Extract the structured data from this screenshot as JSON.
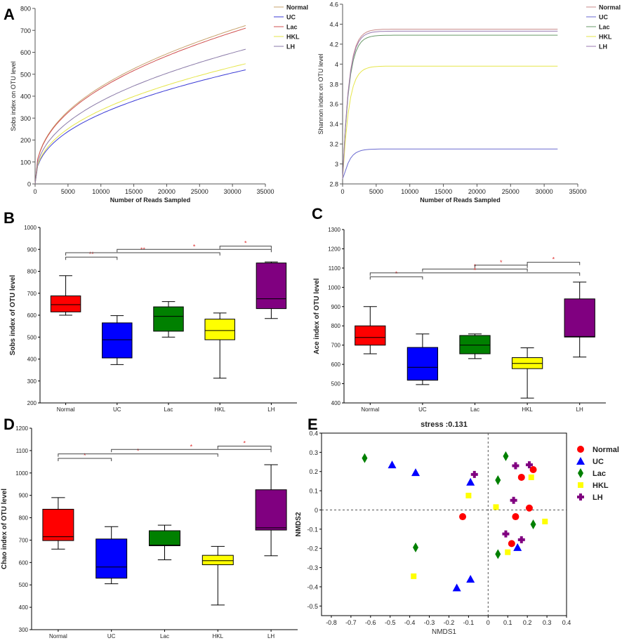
{
  "panels": {
    "A": {
      "letter": "A",
      "left": {
        "chart_type": "line",
        "title": "",
        "xlabel": "Number of Reads Sampled",
        "ylabel": "Sobs index on OTU level",
        "xlim": [
          0,
          35000
        ],
        "ylim": [
          0,
          800
        ],
        "xticks": [
          0,
          5000,
          10000,
          15000,
          20000,
          25000,
          30000,
          35000
        ],
        "yticks": [
          0,
          100,
          200,
          300,
          400,
          500,
          600,
          700,
          800
        ],
        "legend": [
          "Normal",
          "UC",
          "Lac",
          "HKL",
          "LH"
        ],
        "series": [
          {
            "name": "Normal",
            "color": "#c8a36e",
            "final": 722
          },
          {
            "name": "UC",
            "color": "#3b3bd6",
            "final": 520
          },
          {
            "name": "Lac",
            "color": "#d05050",
            "final": 710
          },
          {
            "name": "HKL",
            "color": "#e6e64a",
            "final": 548
          },
          {
            "name": "LH",
            "color": "#8a7aa8",
            "final": 614
          }
        ],
        "x_end": 32000
      },
      "right": {
        "chart_type": "line",
        "title": "",
        "xlabel": "Number of Reads Sampled",
        "ylabel": "Shannon index on OTU level",
        "xlim": [
          0,
          35000
        ],
        "ylim": [
          2.8,
          4.6
        ],
        "xticks": [
          0,
          5000,
          10000,
          15000,
          20000,
          25000,
          30000,
          35000
        ],
        "yticks": [
          2.8,
          3,
          3.2,
          3.4,
          3.6,
          3.8,
          4,
          4.2,
          4.4,
          4.6
        ],
        "legend": [
          "Normal",
          "UC",
          "Lac",
          "HKL",
          "LH"
        ],
        "series": [
          {
            "name": "Normal",
            "color": "#c88a8a",
            "final": 4.35
          },
          {
            "name": "UC",
            "color": "#6a6ad0",
            "final": 3.15
          },
          {
            "name": "Lac",
            "color": "#6a9a6a",
            "final": 4.29
          },
          {
            "name": "HKL",
            "color": "#e6e64a",
            "final": 3.98
          },
          {
            "name": "LH",
            "color": "#9a7ab0",
            "final": 4.33
          }
        ],
        "x_end": 32000
      }
    },
    "B": {
      "letter": "B",
      "chart_type": "box",
      "ylabel": "Sobs index of OTU level",
      "ylim": [
        200,
        1000
      ],
      "yticks": [
        200,
        300,
        400,
        500,
        600,
        700,
        800,
        900,
        1000
      ],
      "categories": [
        "Normal",
        "UC",
        "Lac",
        "HKL",
        "LH"
      ],
      "boxes": [
        {
          "name": "Normal",
          "color": "#ff0000",
          "min": 600,
          "q1": 615,
          "median": 648,
          "q3": 688,
          "max": 780
        },
        {
          "name": "UC",
          "color": "#0000ff",
          "min": 375,
          "q1": 405,
          "median": 488,
          "q3": 565,
          "max": 598
        },
        {
          "name": "Lac",
          "color": "#008000",
          "min": 500,
          "q1": 527,
          "median": 595,
          "q3": 638,
          "max": 662
        },
        {
          "name": "HKL",
          "color": "#ffff00",
          "min": 313,
          "q1": 488,
          "median": 530,
          "q3": 582,
          "max": 610
        },
        {
          "name": "LH",
          "color": "#800080",
          "min": 585,
          "q1": 630,
          "median": 675,
          "q3": 838,
          "max": 843
        }
      ],
      "brackets": [
        {
          "from": 0,
          "to": 1,
          "y": 865,
          "label": "**"
        },
        {
          "from": 0,
          "to": 3,
          "y": 885,
          "label": "**"
        },
        {
          "from": 1,
          "to": 4,
          "y": 900,
          "label": "*"
        },
        {
          "from": 3,
          "to": 4,
          "y": 915,
          "label": "*"
        }
      ]
    },
    "C": {
      "letter": "C",
      "chart_type": "box",
      "ylabel": "Ace index of OTU level",
      "ylim": [
        400,
        1300
      ],
      "yticks": [
        400,
        500,
        600,
        700,
        800,
        900,
        1000,
        1100,
        1200,
        1300
      ],
      "categories": [
        "Normal",
        "UC",
        "Lac",
        "HKL",
        "LH"
      ],
      "boxes": [
        {
          "name": "Normal",
          "color": "#ff0000",
          "min": 655,
          "q1": 700,
          "median": 740,
          "q3": 800,
          "max": 900
        },
        {
          "name": "UC",
          "color": "#0000ff",
          "min": 495,
          "q1": 518,
          "median": 585,
          "q3": 688,
          "max": 758
        },
        {
          "name": "Lac",
          "color": "#008000",
          "min": 630,
          "q1": 655,
          "median": 700,
          "q3": 750,
          "max": 758
        },
        {
          "name": "HKL",
          "color": "#ffff00",
          "min": 425,
          "q1": 578,
          "median": 605,
          "q3": 635,
          "max": 686
        },
        {
          "name": "LH",
          "color": "#800080",
          "min": 638,
          "q1": 742,
          "median": 745,
          "q3": 940,
          "max": 1027
        }
      ],
      "brackets": [
        {
          "from": 0,
          "to": 1,
          "y": 1055,
          "label": "*"
        },
        {
          "from": 1,
          "to": 3,
          "y": 1095,
          "label": "*"
        },
        {
          "from": 2,
          "to": 3,
          "y": 1115,
          "label": "*"
        },
        {
          "from": 0,
          "to": 4,
          "y": 1075,
          "label": "*"
        },
        {
          "from": 3,
          "to": 4,
          "y": 1130,
          "label": "*"
        }
      ]
    },
    "D": {
      "letter": "D",
      "chart_type": "box",
      "ylabel": "Chao index of OTU level",
      "ylim": [
        300,
        1200
      ],
      "yticks": [
        300,
        400,
        500,
        600,
        700,
        800,
        900,
        1000,
        1100,
        1200
      ],
      "categories": [
        "Normal",
        "UC",
        "Lac",
        "HKL",
        "LH"
      ],
      "boxes": [
        {
          "name": "Normal",
          "color": "#ff0000",
          "min": 660,
          "q1": 698,
          "median": 715,
          "q3": 838,
          "max": 890
        },
        {
          "name": "UC",
          "color": "#0000ff",
          "min": 505,
          "q1": 530,
          "median": 580,
          "q3": 705,
          "max": 760
        },
        {
          "name": "Lac",
          "color": "#008000",
          "min": 612,
          "q1": 675,
          "median": 678,
          "q3": 742,
          "max": 767
        },
        {
          "name": "HKL",
          "color": "#ffff00",
          "min": 410,
          "q1": 590,
          "median": 608,
          "q3": 632,
          "max": 672
        },
        {
          "name": "LH",
          "color": "#800080",
          "min": 630,
          "q1": 745,
          "median": 755,
          "q3": 925,
          "max": 1037
        }
      ],
      "brackets": [
        {
          "from": 0,
          "to": 1,
          "y": 1065,
          "label": "*"
        },
        {
          "from": 0,
          "to": 3,
          "y": 1085,
          "label": "*"
        },
        {
          "from": 1,
          "to": 4,
          "y": 1105,
          "label": "*"
        },
        {
          "from": 3,
          "to": 4,
          "y": 1120,
          "label": "*"
        }
      ]
    },
    "E": {
      "letter": "E",
      "chart_type": "scatter",
      "title": "stress :0.131",
      "xlabel": "NMDS1",
      "ylabel": "NMDS2",
      "xlim": [
        -0.85,
        0.4
      ],
      "ylim": [
        -0.55,
        0.4
      ],
      "xticks": [
        -0.8,
        -0.7,
        -0.6,
        -0.5,
        -0.4,
        -0.3,
        -0.2,
        -0.1,
        0,
        0.1,
        0.2,
        0.3,
        0.4
      ],
      "yticks": [
        -0.5,
        -0.4,
        -0.3,
        -0.2,
        -0.1,
        0,
        0.1,
        0.2,
        0.3,
        0.4
      ],
      "legend": [
        "Normal",
        "UC",
        "Lac",
        "HKL",
        "LH"
      ],
      "groups": [
        {
          "name": "Normal",
          "color": "#ff0000",
          "marker": "circle",
          "points": [
            [
              -0.13,
              -0.035
            ],
            [
              0.14,
              -0.035
            ],
            [
              0.17,
              0.17
            ],
            [
              0.21,
              0.01
            ],
            [
              0.12,
              -0.175
            ],
            [
              0.23,
              0.21
            ]
          ]
        },
        {
          "name": "UC",
          "color": "#0000ff",
          "marker": "triangle",
          "points": [
            [
              -0.49,
              0.235
            ],
            [
              -0.37,
              0.195
            ],
            [
              -0.09,
              0.145
            ],
            [
              0.15,
              -0.195
            ],
            [
              -0.09,
              -0.36
            ],
            [
              -0.16,
              -0.405
            ]
          ]
        },
        {
          "name": "Lac",
          "color": "#008000",
          "marker": "diamond",
          "points": [
            [
              -0.63,
              0.27
            ],
            [
              0.09,
              0.28
            ],
            [
              0.05,
              0.155
            ],
            [
              0.23,
              -0.075
            ],
            [
              0.05,
              -0.23
            ],
            [
              -0.37,
              -0.195
            ]
          ]
        },
        {
          "name": "HKL",
          "color": "#ffff00",
          "marker": "square",
          "points": [
            [
              -0.1,
              0.075
            ],
            [
              0.04,
              0.015
            ],
            [
              0.22,
              0.17
            ],
            [
              0.29,
              -0.06
            ],
            [
              0.1,
              -0.22
            ],
            [
              -0.38,
              -0.345
            ]
          ]
        },
        {
          "name": "LH",
          "color": "#800080",
          "marker": "cross",
          "points": [
            [
              -0.07,
              0.185
            ],
            [
              0.14,
              0.23
            ],
            [
              0.21,
              0.235
            ],
            [
              0.13,
              0.05
            ],
            [
              0.09,
              -0.125
            ],
            [
              0.17,
              -0.155
            ]
          ]
        }
      ]
    }
  }
}
